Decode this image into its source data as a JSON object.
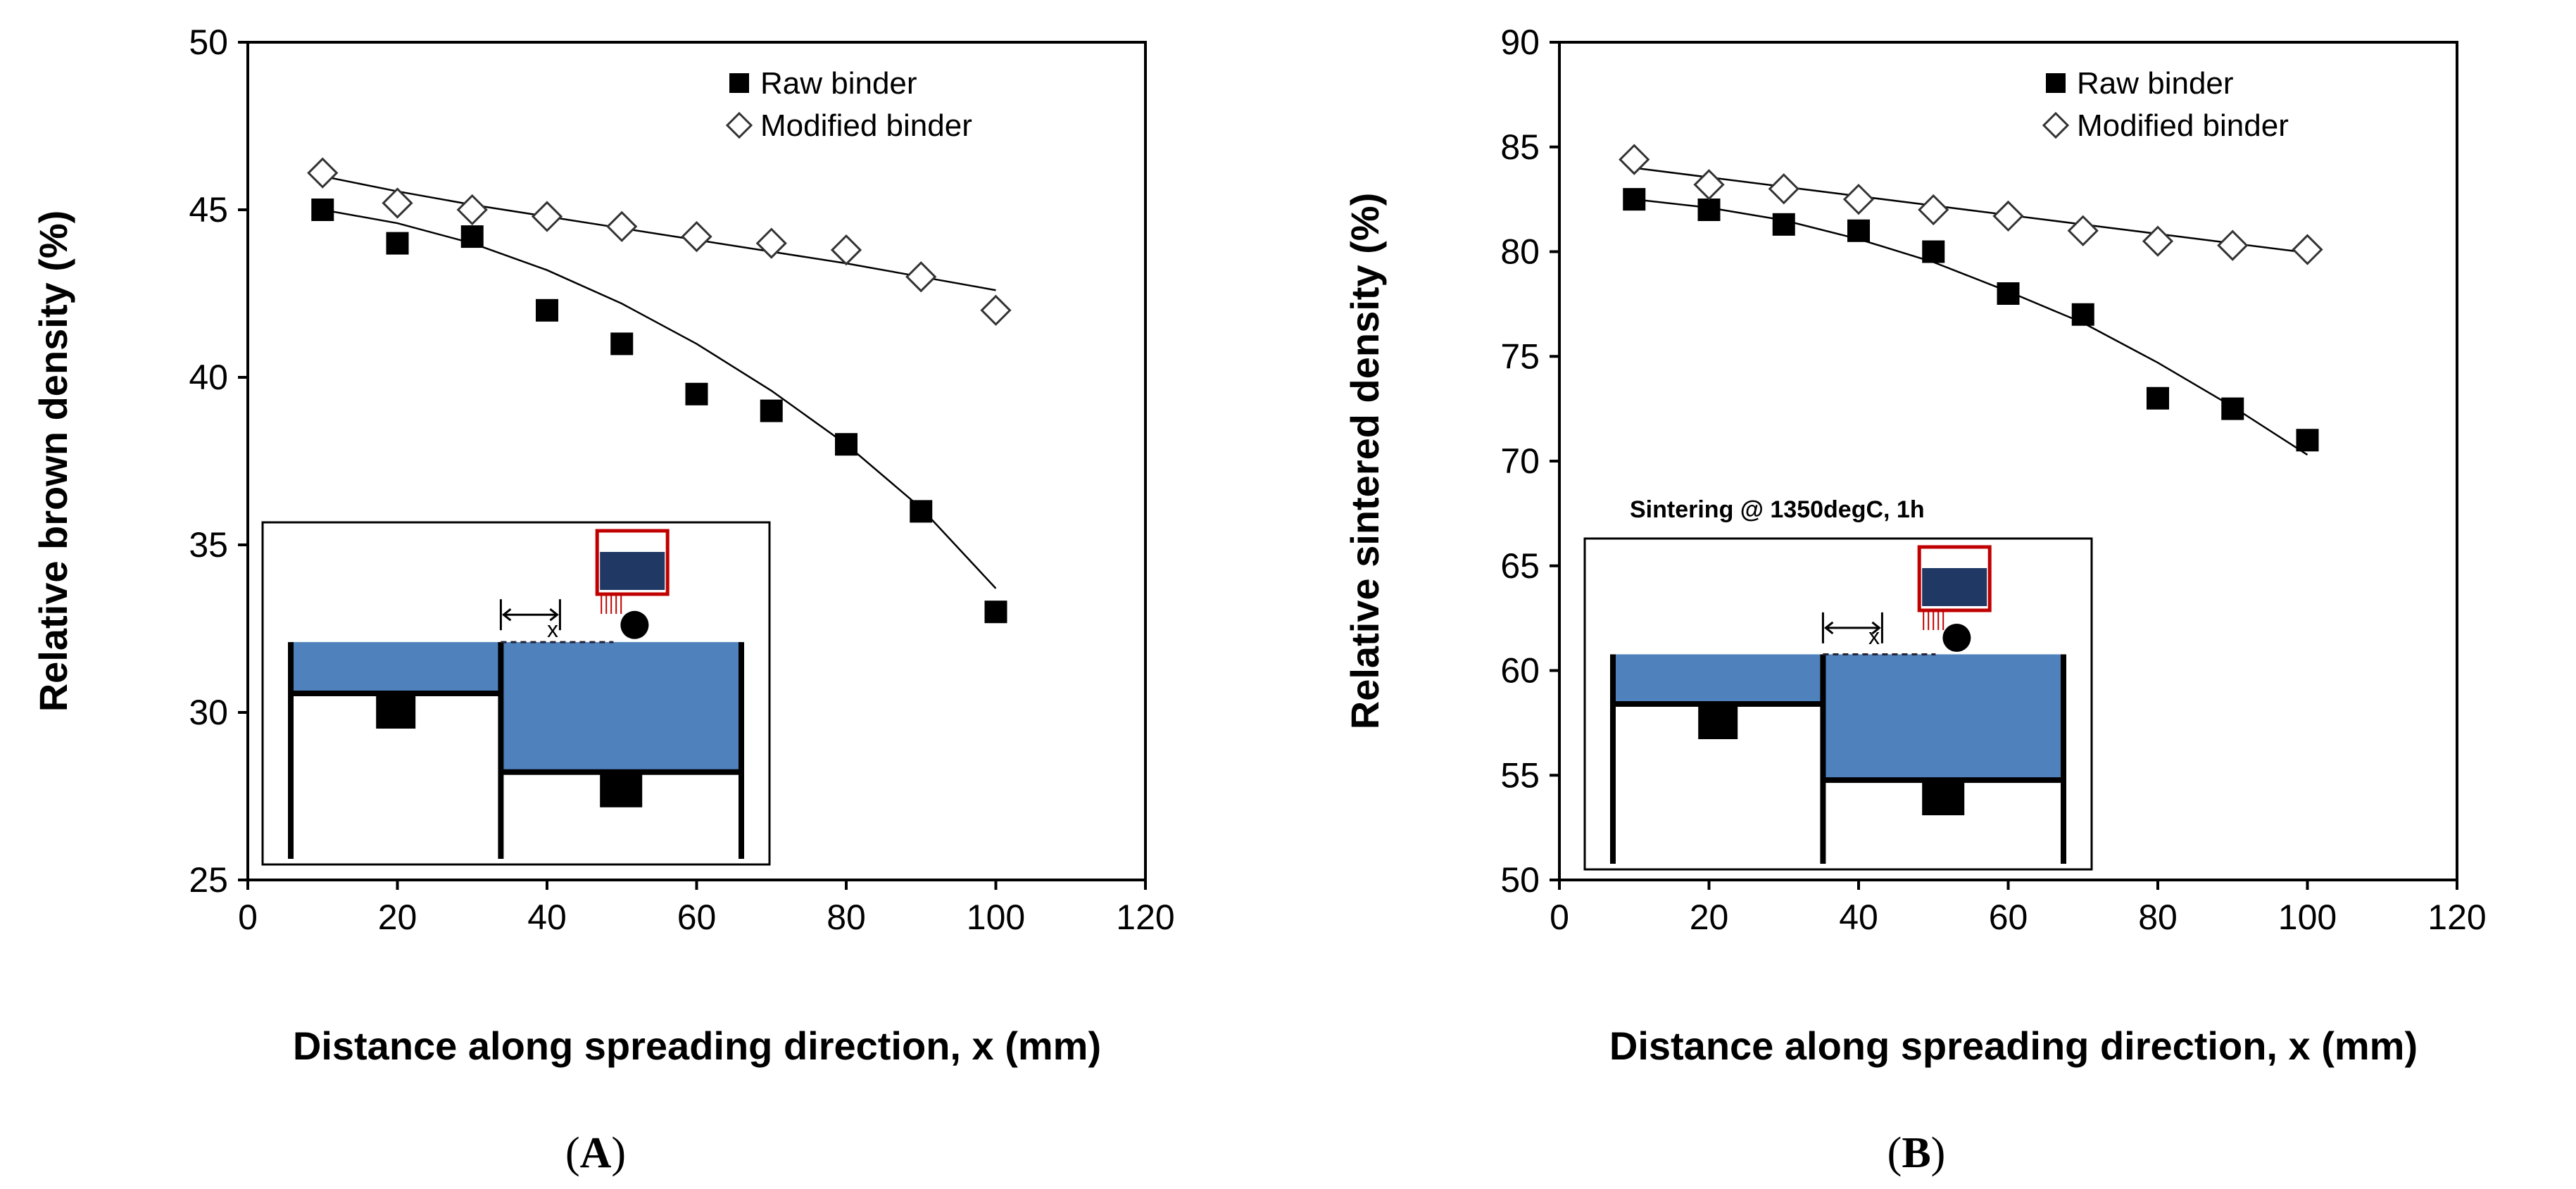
{
  "chart_data": [
    {
      "type": "scatter",
      "panel_label": "A",
      "xlabel": "Distance along spreading direction, x (mm)",
      "ylabel": "Relative brown density (%)",
      "xlim": [
        0,
        120
      ],
      "ylim": [
        25,
        50
      ],
      "xticks": [
        "0",
        "20",
        "40",
        "60",
        "80",
        "100",
        "120"
      ],
      "yticks": [
        "25",
        "30",
        "35",
        "40",
        "45",
        "50"
      ],
      "legend_position": "top-right",
      "series": [
        {
          "name": "Raw binder",
          "marker": "filled-square",
          "x": [
            10,
            20,
            30,
            40,
            50,
            60,
            70,
            80,
            90,
            100
          ],
          "y": [
            45,
            44,
            44.2,
            42,
            41,
            39.5,
            39,
            38,
            36,
            33
          ],
          "trend": [
            45,
            44.6,
            44.0,
            43.2,
            42.2,
            41.0,
            39.6,
            38.0,
            36.1,
            33.7
          ]
        },
        {
          "name": "Modified binder",
          "marker": "open-diamond",
          "x": [
            10,
            20,
            30,
            40,
            50,
            60,
            70,
            80,
            90,
            100
          ],
          "y": [
            46.1,
            45.2,
            45,
            44.8,
            44.5,
            44.2,
            44,
            43.8,
            43,
            42
          ],
          "trend": [
            46,
            45.55,
            45.15,
            44.8,
            44.45,
            44.1,
            43.75,
            43.4,
            43.0,
            42.6
          ]
        }
      ],
      "inset": {
        "caption": "",
        "marker_label": "x"
      }
    },
    {
      "type": "scatter",
      "panel_label": "B",
      "xlabel": "Distance along spreading direction, x (mm)",
      "ylabel": "Relative sintered density (%)",
      "xlim": [
        0,
        120
      ],
      "ylim": [
        50,
        90
      ],
      "xticks": [
        "0",
        "20",
        "40",
        "60",
        "80",
        "100",
        "120"
      ],
      "yticks": [
        "50",
        "55",
        "60",
        "65",
        "70",
        "75",
        "80",
        "85",
        "90"
      ],
      "legend_position": "top-right",
      "series": [
        {
          "name": "Raw binder",
          "marker": "filled-square",
          "x": [
            10,
            20,
            30,
            40,
            50,
            60,
            70,
            80,
            90,
            100
          ],
          "y": [
            82.5,
            82,
            81.3,
            81,
            80,
            78,
            77,
            73,
            72.5,
            71
          ],
          "trend": [
            82.5,
            82.1,
            81.5,
            80.6,
            79.5,
            78.1,
            76.6,
            74.7,
            72.6,
            70.3
          ]
        },
        {
          "name": "Modified binder",
          "marker": "open-diamond",
          "x": [
            10,
            20,
            30,
            40,
            50,
            60,
            70,
            80,
            90,
            100
          ],
          "y": [
            84.4,
            83.2,
            83,
            82.5,
            82,
            81.7,
            81,
            80.5,
            80.3,
            80.1
          ],
          "trend": [
            84,
            83.55,
            83.1,
            82.65,
            82.2,
            81.75,
            81.3,
            80.85,
            80.4,
            79.95
          ]
        }
      ],
      "inset": {
        "caption": "Sintering @ 1350degC, 1h",
        "marker_label": "x"
      }
    }
  ],
  "labels": {
    "panel_a": "A",
    "panel_b": "B"
  }
}
